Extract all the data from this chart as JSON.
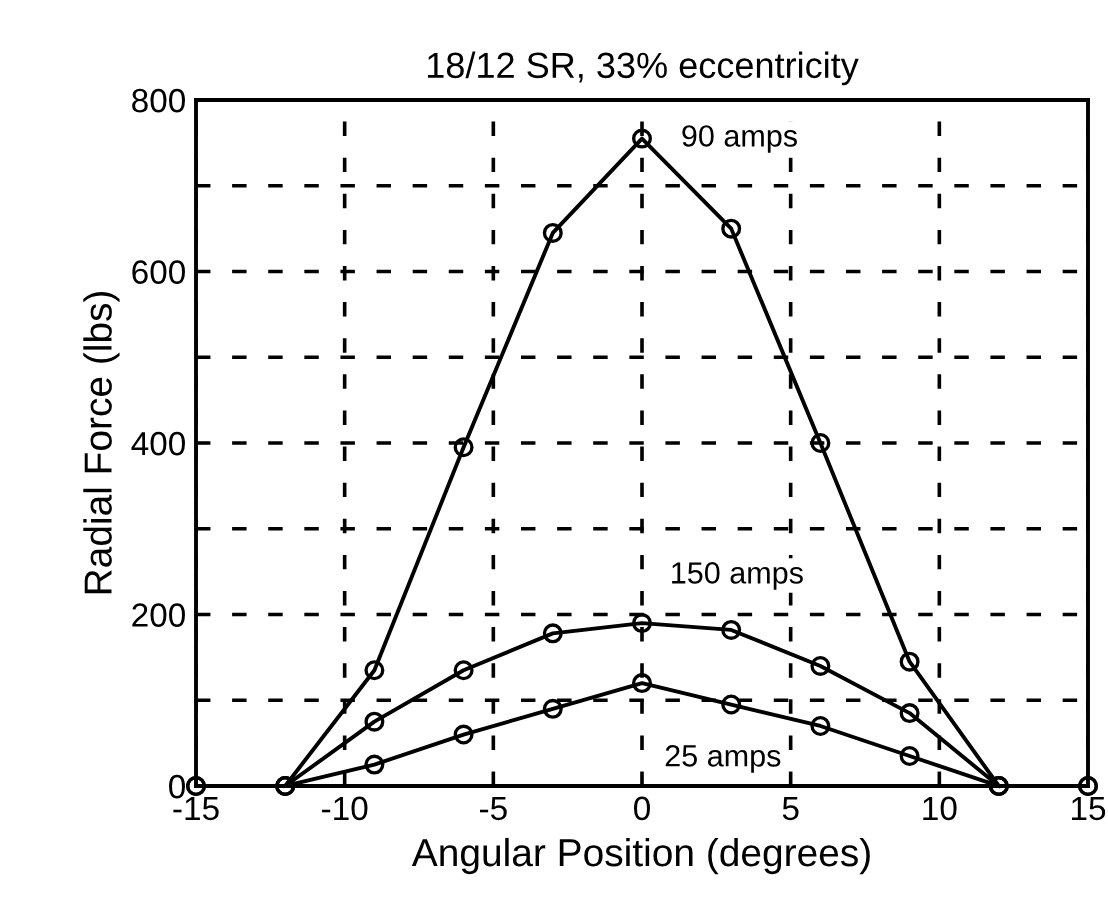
{
  "chart_data": {
    "type": "line",
    "title": "18/12 SR, 33% eccentricity",
    "xlabel": "Angular Position (degrees)",
    "ylabel": "Radial Force (lbs)",
    "x": [
      -15,
      -12,
      -9,
      -6,
      -3,
      0,
      3,
      6,
      9,
      12,
      15
    ],
    "series": [
      {
        "name": "90 amps",
        "color": "#000000",
        "values": [
          0,
          0,
          135,
          395,
          645,
          755,
          650,
          400,
          145,
          0,
          0
        ]
      },
      {
        "name": "150 amps",
        "color": "#000000",
        "values": [
          0,
          0,
          75,
          135,
          178,
          190,
          182,
          140,
          85,
          0,
          0
        ]
      },
      {
        "name": "25 amps",
        "color": "#000000",
        "x": [
          -12,
          -9,
          -6,
          -3,
          0,
          3,
          6,
          9,
          12
        ],
        "values": [
          0,
          25,
          60,
          90,
          120,
          95,
          70,
          35,
          0
        ]
      }
    ],
    "xlim": [
      -15,
      15
    ],
    "xticks": [
      -15,
      -10,
      -5,
      0,
      5,
      10,
      15
    ],
    "ylim": [
      0,
      800
    ],
    "yticks": [
      0,
      {
        "value": 100,
        "label": null
      },
      200,
      {
        "value": 300,
        "label": null
      },
      400,
      {
        "value": 500,
        "label": null
      },
      600,
      {
        "value": 700,
        "label": null
      },
      800
    ],
    "grid": true,
    "marker": "circle",
    "line_style": "solid",
    "legend": false
  }
}
